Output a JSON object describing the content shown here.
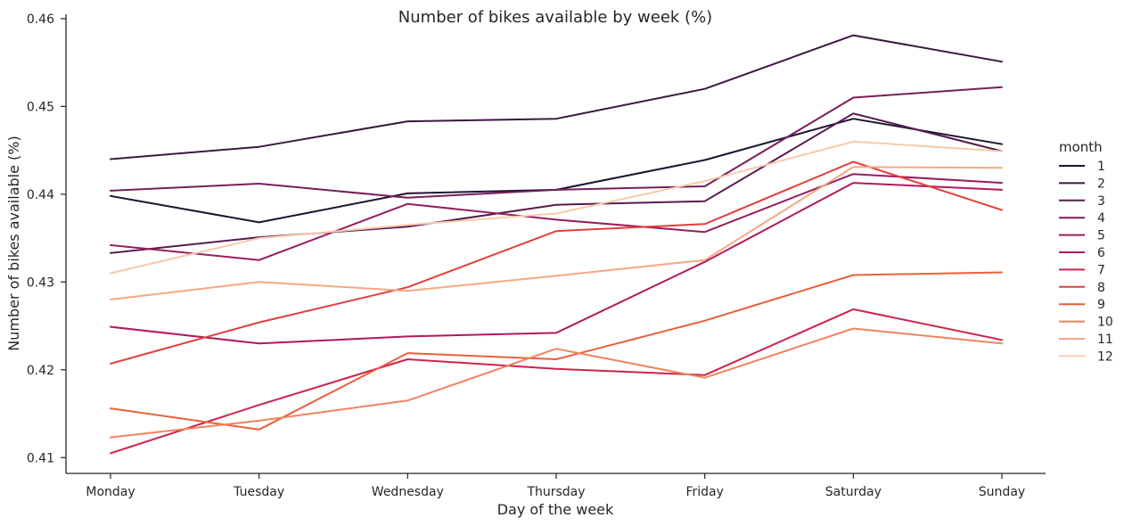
{
  "chart_data": {
    "type": "line",
    "title": "Number of bikes available by week (%)",
    "xlabel": "Day of the week",
    "ylabel": "Number of bikes available (%)",
    "categories": [
      "Monday",
      "Tuesday",
      "Wednesday",
      "Thursday",
      "Friday",
      "Saturday",
      "Sunday"
    ],
    "ylim": [
      0.4082,
      0.4605
    ],
    "yticks": [
      0.41,
      0.42,
      0.43,
      0.44,
      0.45,
      0.46
    ],
    "ytick_labels": [
      "0.41",
      "0.42",
      "0.43",
      "0.44",
      "0.45",
      "0.46"
    ],
    "grid": false,
    "legend": {
      "title": "month",
      "placement": "right"
    },
    "series": [
      {
        "name": "1",
        "color": "#1e1432",
        "values": [
          0.4398,
          0.4368,
          0.4401,
          0.4405,
          0.4439,
          0.4486,
          0.4457
        ]
      },
      {
        "name": "2",
        "color": "#3b1840",
        "values": [
          0.444,
          0.4454,
          0.4483,
          0.4486,
          0.452,
          0.4581,
          0.4551
        ]
      },
      {
        "name": "3",
        "color": "#581b4f",
        "values": [
          0.4333,
          0.4351,
          0.4363,
          0.4388,
          0.4392,
          0.4492,
          0.4449
        ]
      },
      {
        "name": "4",
        "color": "#771f5b",
        "values": [
          0.4404,
          0.4412,
          0.4396,
          0.4405,
          0.4409,
          0.451,
          0.4522
        ]
      },
      {
        "name": "5",
        "color": "#961d5f",
        "values": [
          0.4342,
          0.4325,
          0.4389,
          0.4371,
          0.4357,
          0.4423,
          0.4413
        ]
      },
      {
        "name": "6",
        "color": "#b2185b",
        "values": [
          0.4249,
          0.423,
          0.4238,
          0.4242,
          0.4323,
          0.4413,
          0.4405
        ]
      },
      {
        "name": "7",
        "color": "#cd224e",
        "values": [
          0.4105,
          0.416,
          0.4212,
          0.4201,
          0.4194,
          0.4269,
          0.4234
        ]
      },
      {
        "name": "8",
        "color": "#e23e3c",
        "values": [
          0.4207,
          0.4254,
          0.4294,
          0.4358,
          0.4366,
          0.4437,
          0.4382
        ]
      },
      {
        "name": "9",
        "color": "#ea5f3b",
        "values": [
          0.4156,
          0.4132,
          0.4219,
          0.4212,
          0.4256,
          0.4308,
          0.4311
        ]
      },
      {
        "name": "10",
        "color": "#f1845d",
        "values": [
          0.4123,
          0.4142,
          0.4165,
          0.4224,
          0.4191,
          0.4247,
          0.423
        ]
      },
      {
        "name": "11",
        "color": "#f4a882",
        "values": [
          0.428,
          0.43,
          0.429,
          0.4307,
          0.4325,
          0.4431,
          0.443
        ]
      },
      {
        "name": "12",
        "color": "#f6cbad",
        "values": [
          0.431,
          0.435,
          0.4365,
          0.4378,
          0.4415,
          0.446,
          0.4449
        ]
      }
    ]
  }
}
